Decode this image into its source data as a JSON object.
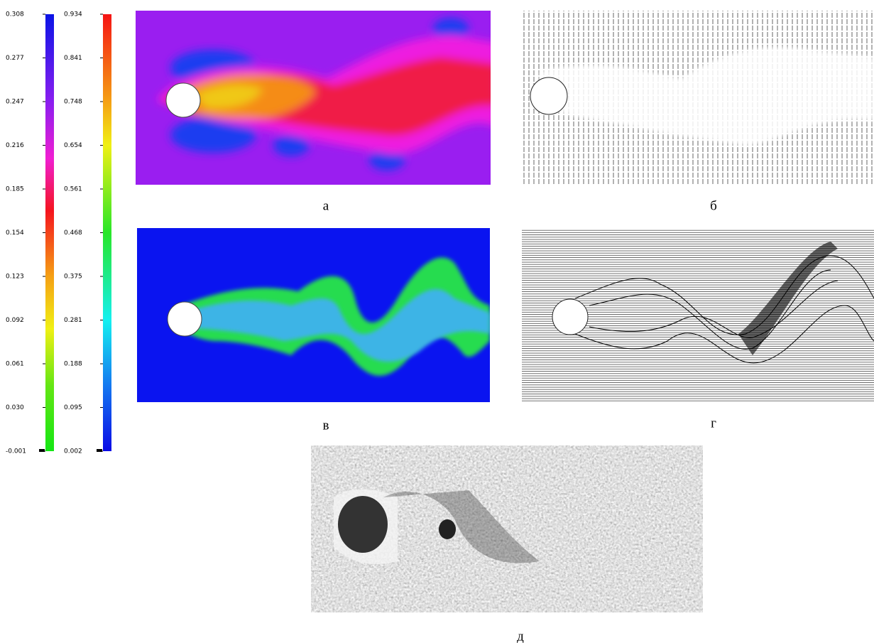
{
  "colorbars": [
    {
      "ticks": [
        "0.308",
        "0.277",
        "0.247",
        "0.216",
        "0.185",
        "0.154",
        "0.123",
        "0.092",
        "0.061",
        "0.030",
        "-0.001"
      ]
    },
    {
      "ticks": [
        "0.934",
        "0.841",
        "0.748",
        "0.654",
        "0.561",
        "0.468",
        "0.375",
        "0.281",
        "0.188",
        "0.095",
        "0.002"
      ]
    }
  ],
  "panels": [
    {
      "label": "а"
    },
    {
      "label": "б"
    },
    {
      "label": "в"
    },
    {
      "label": "г"
    },
    {
      "label": "д"
    }
  ]
}
